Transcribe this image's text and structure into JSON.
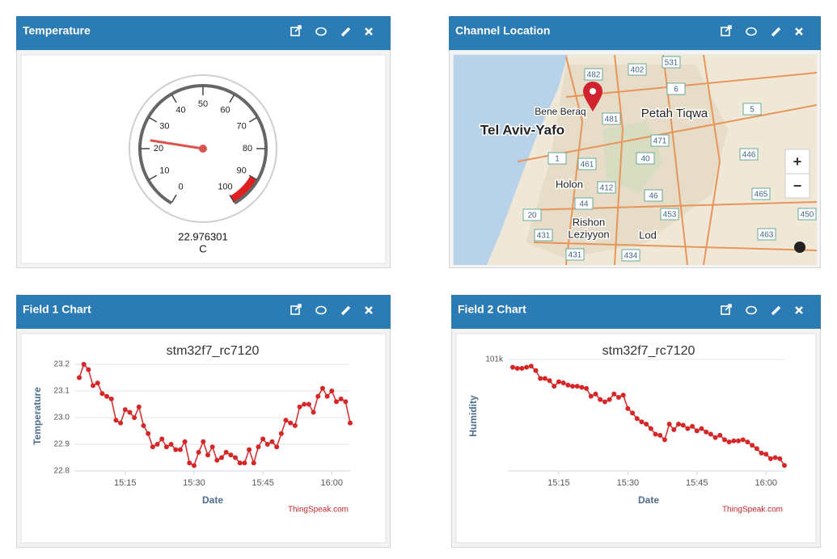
{
  "widgets": [
    {
      "title": "Temperature"
    },
    {
      "title": "Channel Location"
    },
    {
      "title": "Field 1 Chart"
    },
    {
      "title": "Field 2 Chart"
    }
  ],
  "gauge": {
    "ticks": [
      0,
      10,
      20,
      30,
      40,
      50,
      60,
      70,
      80,
      90,
      100
    ],
    "red_zone": [
      90,
      100
    ],
    "value": 22.976301,
    "unit": "C"
  },
  "map": {
    "places": [
      "Tel Aviv-Yafo",
      "Bene Beraq",
      "Petah Tiqwa",
      "Holon",
      "Rishon",
      "Leziyyon",
      "Lod"
    ],
    "roads": [
      "482",
      "402",
      "531",
      "6",
      "481",
      "5",
      "471",
      "1",
      "461",
      "40",
      "446",
      "412",
      "44",
      "46",
      "465",
      "453",
      "450",
      "20",
      "463",
      "431",
      "431",
      "434"
    ],
    "zoom_in": "+",
    "zoom_out": "−"
  },
  "chart_data": [
    {
      "type": "line",
      "title": "stm32f7_rc7120",
      "x_label": "Date",
      "y_label": "Temperature",
      "credits": "ThingSpeak.com",
      "color": "#d62728",
      "x": [
        "15:05",
        "15:06",
        "15:07",
        "15:08",
        "15:09",
        "15:10",
        "15:11",
        "15:12",
        "15:13",
        "15:14",
        "15:15",
        "15:16",
        "15:17",
        "15:18",
        "15:19",
        "15:20",
        "15:21",
        "15:22",
        "15:23",
        "15:24",
        "15:25",
        "15:26",
        "15:27",
        "15:28",
        "15:29",
        "15:30",
        "15:31",
        "15:32",
        "15:33",
        "15:34",
        "15:35",
        "15:36",
        "15:37",
        "15:38",
        "15:39",
        "15:40",
        "15:41",
        "15:42",
        "15:43",
        "15:44",
        "15:45",
        "15:46",
        "15:47",
        "15:48",
        "15:49",
        "15:50",
        "15:51",
        "15:52",
        "15:53",
        "15:54",
        "15:55",
        "15:56",
        "15:57",
        "15:58",
        "15:59",
        "16:00",
        "16:01",
        "16:02",
        "16:03",
        "16:04"
      ],
      "values": [
        23.15,
        23.2,
        23.18,
        23.12,
        23.13,
        23.09,
        23.08,
        23.07,
        22.99,
        22.98,
        23.03,
        23.02,
        23.0,
        23.04,
        22.97,
        22.94,
        22.89,
        22.9,
        22.92,
        22.89,
        22.9,
        22.88,
        22.88,
        22.91,
        22.83,
        22.82,
        22.87,
        22.91,
        22.86,
        22.89,
        22.84,
        22.85,
        22.87,
        22.86,
        22.85,
        22.83,
        22.83,
        22.88,
        22.83,
        22.89,
        22.92,
        22.9,
        22.91,
        22.89,
        22.94,
        22.99,
        22.98,
        22.97,
        23.04,
        23.05,
        23.05,
        23.02,
        23.08,
        23.11,
        23.08,
        23.1,
        23.06,
        23.07,
        23.06,
        22.98
      ],
      "xlim": [
        "15:05",
        "16:04"
      ],
      "xticks": [
        "15:15",
        "15:30",
        "15:45",
        "16:00"
      ],
      "ylim": [
        22.8,
        23.2
      ],
      "yticks": [
        22.8,
        22.9,
        {
          "value": 23,
          "label": "23.0"
        },
        23.1,
        23.2
      ]
    },
    {
      "type": "line",
      "title": "stm32f7_rc7120",
      "x_label": "Date",
      "y_label": "Humidity",
      "credits": "ThingSpeak.com",
      "color": "#d62728",
      "x": [
        "15:05",
        "15:06",
        "15:07",
        "15:08",
        "15:09",
        "15:10",
        "15:11",
        "15:12",
        "15:13",
        "15:14",
        "15:15",
        "15:16",
        "15:17",
        "15:18",
        "15:19",
        "15:20",
        "15:21",
        "15:22",
        "15:23",
        "15:24",
        "15:25",
        "15:26",
        "15:27",
        "15:28",
        "15:29",
        "15:30",
        "15:31",
        "15:32",
        "15:33",
        "15:34",
        "15:35",
        "15:36",
        "15:37",
        "15:38",
        "15:39",
        "15:40",
        "15:41",
        "15:42",
        "15:43",
        "15:44",
        "15:45",
        "15:46",
        "15:47",
        "15:48",
        "15:49",
        "15:50",
        "15:51",
        "15:52",
        "15:53",
        "15:54",
        "15:55",
        "15:56",
        "15:57",
        "15:58",
        "15:59",
        "16:00",
        "16:01",
        "16:02",
        "16:03",
        "16:04"
      ],
      "values": [
        100930,
        100920,
        100920,
        100930,
        100940,
        100900,
        100830,
        100830,
        100810,
        100760,
        100800,
        100790,
        100770,
        100760,
        100760,
        100750,
        100740,
        100670,
        100690,
        100640,
        100620,
        100640,
        100690,
        100660,
        100680,
        100560,
        100520,
        100470,
        100440,
        100420,
        100380,
        100330,
        100320,
        100280,
        100420,
        100370,
        100420,
        100410,
        100380,
        100400,
        100360,
        100380,
        100350,
        100330,
        100300,
        100320,
        100280,
        100260,
        100270,
        100270,
        100280,
        100260,
        100230,
        100200,
        100160,
        100150,
        100110,
        100120,
        100110,
        100050
      ],
      "xlim": [
        "15:05",
        "16:04"
      ],
      "xticks": [
        "15:15",
        "15:30",
        "15:45",
        "16:00"
      ],
      "ylim": [
        100000,
        101000
      ],
      "yticks": [
        {
          "value": 101000,
          "label": "101k"
        }
      ]
    }
  ]
}
